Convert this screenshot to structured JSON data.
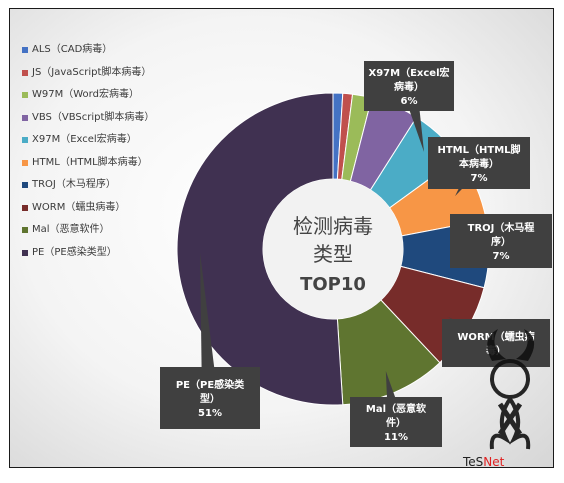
{
  "chart_data": {
    "type": "pie",
    "title": "检测病毒类型",
    "subtitle": "TOP10",
    "legend_position": "left",
    "slices": [
      {
        "code": "ALS",
        "legend": "ALS（CAD病毒）",
        "value": 1,
        "color": "#4472c4",
        "callout": ""
      },
      {
        "code": "JS",
        "legend": "JS（JavaScript脚本病毒）",
        "value": 1,
        "color": "#c0504d",
        "callout": ""
      },
      {
        "code": "W97M",
        "legend": "W97M（Word宏病毒）",
        "value": 2,
        "color": "#9bbb59",
        "callout": ""
      },
      {
        "code": "VBS",
        "legend": "VBS（VBScript脚本病毒）",
        "value": 5,
        "color": "#8064a2",
        "callout": ""
      },
      {
        "code": "X97M",
        "legend": "X97M（Excel宏病毒）",
        "value": 6,
        "color": "#4bacc6",
        "callout": "X97M（Excel宏|病毒）|6%"
      },
      {
        "code": "HTML",
        "legend": "HTML（HTML脚本病毒）",
        "value": 7,
        "color": "#f79646",
        "callout": "HTML（HTML脚|本病毒）|7%"
      },
      {
        "code": "TROJ",
        "legend": "TROJ（木马程序）",
        "value": 7,
        "color": "#1f497d",
        "callout": "TROJ（木马程|序）|7%"
      },
      {
        "code": "WORM",
        "legend": "WORM（蠕虫病毒）",
        "value": 9,
        "color": "#772c2a",
        "callout": "WORM（蠕虫病|毒）"
      },
      {
        "code": "Mal",
        "legend": "Mal（恶意软件）",
        "value": 11,
        "color": "#5f7530",
        "callout": "Mal（恶意软|件）|11%"
      },
      {
        "code": "PE",
        "legend": "PE（PE感染类型）",
        "value": 51,
        "color": "#403151",
        "callout": "PE（PE感染类|型）|51%"
      }
    ]
  },
  "watermark": {
    "text": "TeS",
    "suffix": "Net"
  }
}
